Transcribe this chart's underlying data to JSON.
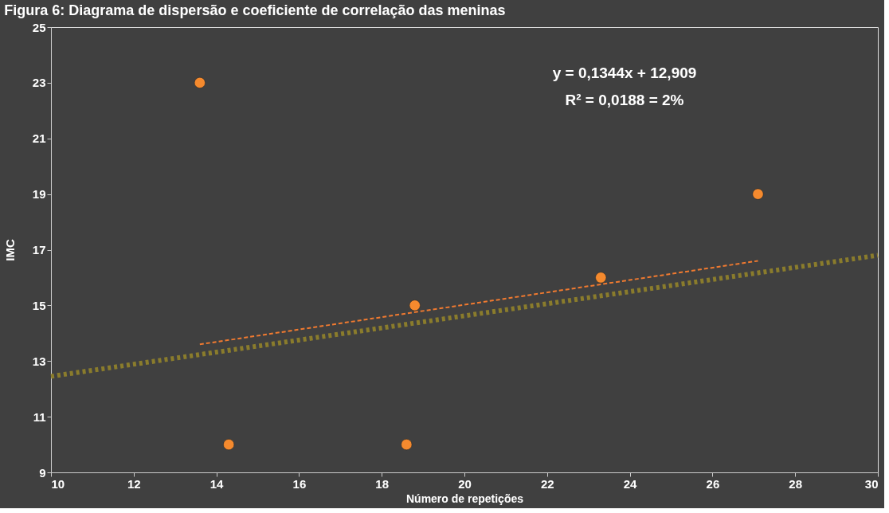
{
  "chart_data": {
    "type": "scatter",
    "title": "Figura 6: Diagrama de dispersão e coeficiente de correlação das meninas",
    "xlabel": "Número  de repetições",
    "ylabel": "IMC",
    "series": [
      {
        "color": "#f58a2e",
        "x": [
          13.6,
          14.3,
          18.6,
          18.8,
          23.3,
          27.1
        ],
        "values": [
          23,
          10,
          10,
          15,
          16,
          19
        ],
        "marker": "circle"
      },
      {
        "type": "line",
        "color": "#f07a30",
        "x": [
          13.6,
          27.1
        ],
        "values": [
          13.6,
          16.6
        ],
        "line_style": "dashed"
      },
      {
        "type": "line",
        "color": "#8a7c2c",
        "x": [
          10,
          30
        ],
        "values": [
          12.45,
          16.8
        ],
        "line_style": "dotted"
      }
    ],
    "annotations": [
      "y = 0,1344x + 12,909",
      "R² = 0,0188 = 2%"
    ],
    "xlim": [
      10,
      30
    ],
    "xticks": [
      10,
      12,
      14,
      16,
      18,
      20,
      22,
      24,
      26,
      28,
      30
    ],
    "ylim": [
      9,
      25
    ],
    "yticks": [
      9,
      11,
      13,
      15,
      17,
      19,
      21,
      23,
      25
    ],
    "grid": false
  }
}
